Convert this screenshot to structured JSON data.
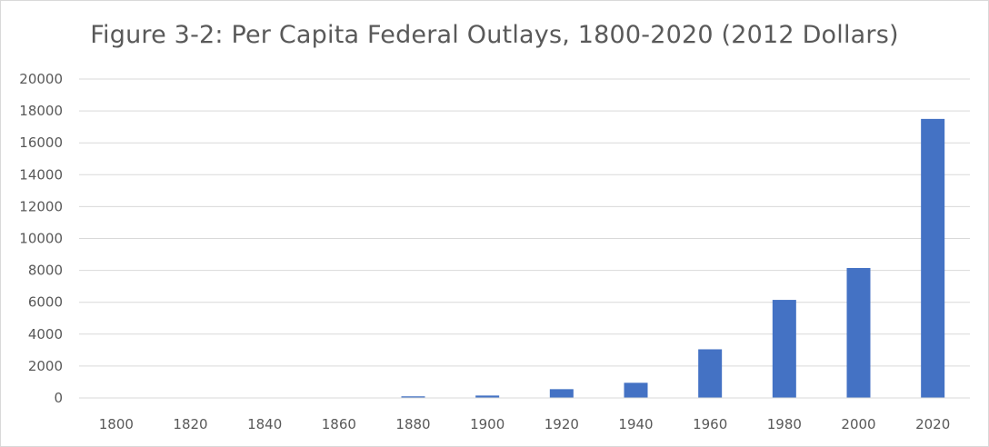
{
  "chart_data": {
    "type": "bar",
    "title": "Figure 3-2: Per Capita Federal Outlays, 1800-2020 (2012 Dollars)",
    "xlabel": "",
    "ylabel": "",
    "categories": [
      "1800",
      "1820",
      "1840",
      "1860",
      "1880",
      "1900",
      "1920",
      "1940",
      "1960",
      "1980",
      "2000",
      "2020"
    ],
    "series": [
      {
        "values": [
          10,
          15,
          20,
          25,
          100,
          150,
          550,
          950,
          3050,
          6150,
          8150,
          17500
        ],
        "color": "#4472c4"
      }
    ],
    "ylim": [
      0,
      20000
    ],
    "yticks": [
      "0",
      "2000",
      "4000",
      "6000",
      "8000",
      "10000",
      "12000",
      "14000",
      "16000",
      "18000",
      "20000"
    ],
    "grid": true,
    "gridColor": "#d9d9d9",
    "legend": "none"
  }
}
